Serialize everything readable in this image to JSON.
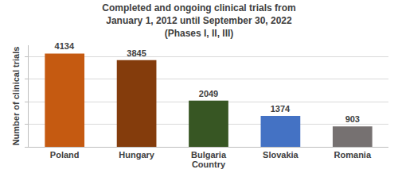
{
  "chart_data": {
    "type": "bar",
    "title": [
      "Completed and ongoing clinical trials from",
      "January 1, 2012 until September 30, 2022",
      "(Phases I, II, III)"
    ],
    "x_label": "Country",
    "y_label": "Number of clinical trials",
    "categories": [
      "Poland",
      "Hungary",
      "Bulgaria",
      "Slovakia",
      "Romania"
    ],
    "values": [
      4134,
      3845,
      2049,
      1374,
      903
    ],
    "colors": [
      "#c55a11",
      "#843c0c",
      "#375623",
      "#4472c4",
      "#767171"
    ],
    "ylim": [
      0,
      4500
    ],
    "yticks": [
      0,
      1000,
      2000,
      3000,
      4000
    ],
    "grid": true,
    "data_labels": true,
    "tick_labels": "x"
  }
}
